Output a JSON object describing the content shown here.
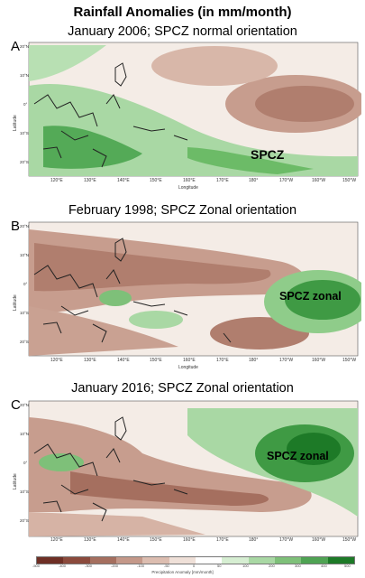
{
  "title": "Rainfall Anomalies (in mm/month)",
  "panels": [
    {
      "letter": "A",
      "heading": "January 2006; SPCZ normal orientation",
      "annotation": "SPCZ",
      "xlabel": "Longitude",
      "ylabel": "Latitude"
    },
    {
      "letter": "B",
      "heading": "February 1998; SPCZ Zonal orientation",
      "annotation": "SPCZ zonal",
      "xlabel": "Longitude",
      "ylabel": "Latitude"
    },
    {
      "letter": "C",
      "heading": "January 2016; SPCZ Zonal orientation",
      "annotation": "SPCZ zonal",
      "xlabel": "",
      "ylabel": "Latitude"
    }
  ],
  "lon_ticks": [
    "120°E",
    "130°E",
    "140°E",
    "150°E",
    "160°E",
    "170°E",
    "180°",
    "170°W",
    "160°W",
    "150°W"
  ],
  "lat_ticks": [
    "20°N",
    "10°N",
    "0°",
    "10°S",
    "20°S"
  ],
  "colorbar": {
    "title": "Precipitation Anomaly [mm/month]",
    "ticks": [
      "-500",
      "-400",
      "-300",
      "-200",
      "-100",
      "-50",
      "0",
      "50",
      "100",
      "200",
      "300",
      "400",
      "500"
    ],
    "negative_color": "#8b4a3c",
    "positive_color": "#1f7a2a"
  }
}
